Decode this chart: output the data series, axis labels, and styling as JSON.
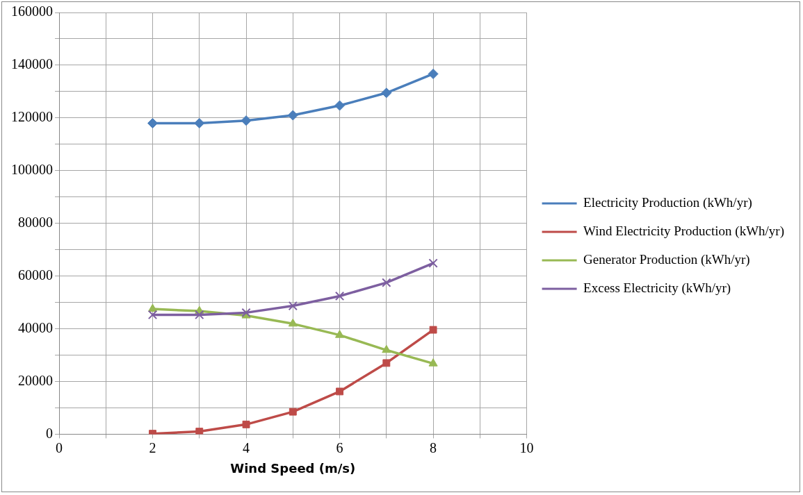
{
  "chart_data": {
    "type": "line",
    "xlabel": "Wind Speed (m/s)",
    "x": [
      2,
      3,
      4,
      5,
      6,
      7,
      8
    ],
    "xlim": [
      0,
      10
    ],
    "xticks": [
      0,
      {
        "value": 1,
        "label": null
      },
      2,
      {
        "value": 3,
        "label": null
      },
      4,
      {
        "value": 5,
        "label": null
      },
      6,
      {
        "value": 7,
        "label": null
      },
      8,
      {
        "value": 9,
        "label": null
      },
      10
    ],
    "ylim": [
      0,
      160000
    ],
    "yticks": [
      0,
      {
        "value": 10000,
        "label": null
      },
      20000,
      {
        "value": 30000,
        "label": null
      },
      40000,
      {
        "value": 50000,
        "label": null
      },
      60000,
      {
        "value": 70000,
        "label": null
      },
      80000,
      {
        "value": 90000,
        "label": null
      },
      100000,
      {
        "value": 110000,
        "label": null
      },
      120000,
      {
        "value": 130000,
        "label": null
      },
      140000,
      {
        "value": 150000,
        "label": null
      },
      160000
    ],
    "grid": true,
    "legend": "right",
    "line_style": "solid",
    "series": [
      {
        "name": "Electricity Production (kWh/yr)",
        "color": "#4a7ebb",
        "marker": "diamond",
        "values": [
          118000,
          118000,
          119000,
          121000,
          124700,
          129500,
          136700
        ]
      },
      {
        "name": "Wind Electricity Production (kWh/yr)",
        "color": "#be4b48",
        "marker": "square",
        "values": [
          200,
          1000,
          3700,
          8500,
          16200,
          27000,
          39600
        ]
      },
      {
        "name": "Generator Production (kWh/yr)",
        "color": "#98b954",
        "marker": "triangle",
        "values": [
          47500,
          46700,
          45000,
          41900,
          37600,
          31900,
          26800
        ]
      },
      {
        "name": "Excess Electricity (kWh/yr)",
        "color": "#7d5fa0",
        "marker": "cross",
        "values": [
          45300,
          45300,
          46100,
          48700,
          52400,
          57500,
          64900
        ]
      }
    ]
  }
}
